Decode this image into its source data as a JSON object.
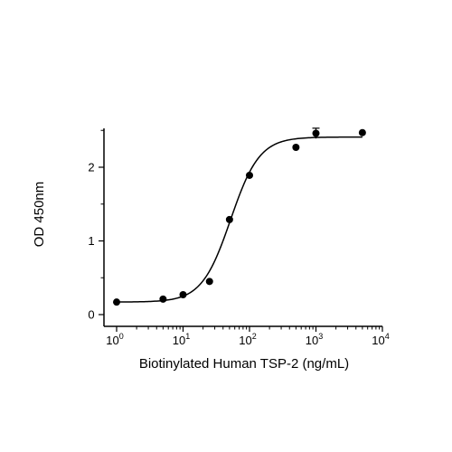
{
  "chart_data": {
    "type": "scatter",
    "xlabel": "Biotinylated Human TSP-2 (ng/mL)",
    "ylabel": "OD 450nm",
    "x_scale": "log10",
    "xlim": [
      1,
      10000
    ],
    "ylim": [
      0,
      2.5
    ],
    "x_ticks": [
      {
        "base": "10",
        "exp": "0",
        "value": 1
      },
      {
        "base": "10",
        "exp": "1",
        "value": 10
      },
      {
        "base": "10",
        "exp": "2",
        "value": 100
      },
      {
        "base": "10",
        "exp": "3",
        "value": 1000
      },
      {
        "base": "10",
        "exp": "4",
        "value": 10000
      }
    ],
    "y_ticks": [
      {
        "label": "0",
        "value": 0
      },
      {
        "label": "1",
        "value": 1
      },
      {
        "label": "2",
        "value": 2
      }
    ],
    "grid": false,
    "legend": "none",
    "points": [
      {
        "x": 1,
        "y": 0.17
      },
      {
        "x": 5,
        "y": 0.21
      },
      {
        "x": 10,
        "y": 0.27
      },
      {
        "x": 25,
        "y": 0.45
      },
      {
        "x": 50,
        "y": 1.29
      },
      {
        "x": 100,
        "y": 1.89
      },
      {
        "x": 500,
        "y": 2.27
      },
      {
        "x": 1000,
        "y": 2.46,
        "err": 0.07
      },
      {
        "x": 5000,
        "y": 2.47
      }
    ],
    "fit": {
      "model": "4PL",
      "bottom": 0.17,
      "top": 2.41,
      "ec50": 52,
      "hill": 2.0,
      "x_range": [
        1,
        5000
      ]
    },
    "colors": {
      "marks": "#000000"
    }
  }
}
